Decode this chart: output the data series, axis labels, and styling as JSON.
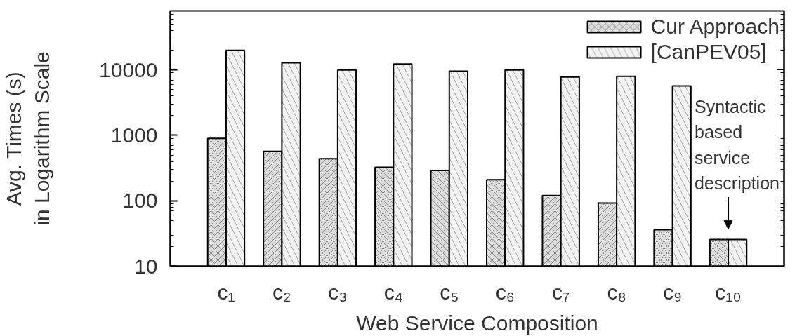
{
  "chart_data": {
    "type": "bar",
    "xlabel": "Web Service Composition",
    "ylabel": "Avg. Times (s)\nin Logarithm Scale",
    "categories": [
      "c₁",
      "c₂",
      "c₃",
      "c₄",
      "c₅",
      "c₆",
      "c₇",
      "c₈",
      "c₉",
      "c₁₀"
    ],
    "series": [
      {
        "name": "Cur Approach",
        "color": "#dddddd",
        "values": [
          900,
          570,
          440,
          325,
          290,
          210,
          120,
          92,
          36,
          25.5
        ]
      },
      {
        "name": "[CanPEV05]",
        "color": "#f2f2f2",
        "values": [
          20000,
          12900,
          10000,
          12300,
          9600,
          10000,
          7800,
          8000,
          5700,
          25.5
        ]
      }
    ],
    "log": true,
    "ylim": [
      10,
      80000
    ],
    "yticks": [
      10,
      100,
      1000,
      10000
    ],
    "legend": "top right",
    "annotations": [
      {
        "text": "Syntactic based service description",
        "x": "c₁₀",
        "y": 25.5
      }
    ]
  }
}
